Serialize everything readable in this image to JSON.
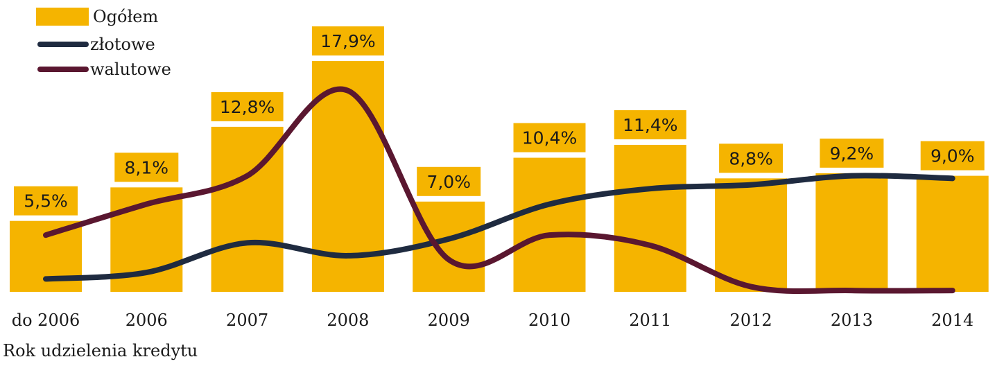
{
  "chart_data": {
    "type": "bar",
    "xlabel": "Rok udzielenia kredytu",
    "categories": [
      "do 2006",
      "2006",
      "2007",
      "2008",
      "2009",
      "2010",
      "2011",
      "2012",
      "2013",
      "2014"
    ],
    "ylim": [
      0,
      20
    ],
    "series": [
      {
        "name": "Ogółem",
        "type": "bar",
        "color": "#F5B400",
        "values": [
          5.5,
          8.1,
          12.8,
          17.9,
          7.0,
          10.4,
          11.4,
          8.8,
          9.2,
          9.0
        ],
        "data_labels": [
          "5,5%",
          "8,1%",
          "12,8%",
          "17,9%",
          "7,0%",
          "10,4%",
          "11,4%",
          "8,8%",
          "9,2%",
          "9,0%"
        ]
      },
      {
        "name": "złotowe",
        "type": "line",
        "smooth": true,
        "color": "#1F2B40",
        "values": [
          1.0,
          1.5,
          3.8,
          2.8,
          4.1,
          6.8,
          8.0,
          8.3,
          9.0,
          8.8
        ]
      },
      {
        "name": "walutowe",
        "type": "line",
        "smooth": true,
        "color": "#5A1730",
        "values": [
          4.4,
          6.8,
          9.0,
          15.6,
          2.5,
          4.4,
          3.6,
          0.4,
          0.1,
          0.1
        ]
      }
    ],
    "legend": "top-left",
    "grid": false
  }
}
